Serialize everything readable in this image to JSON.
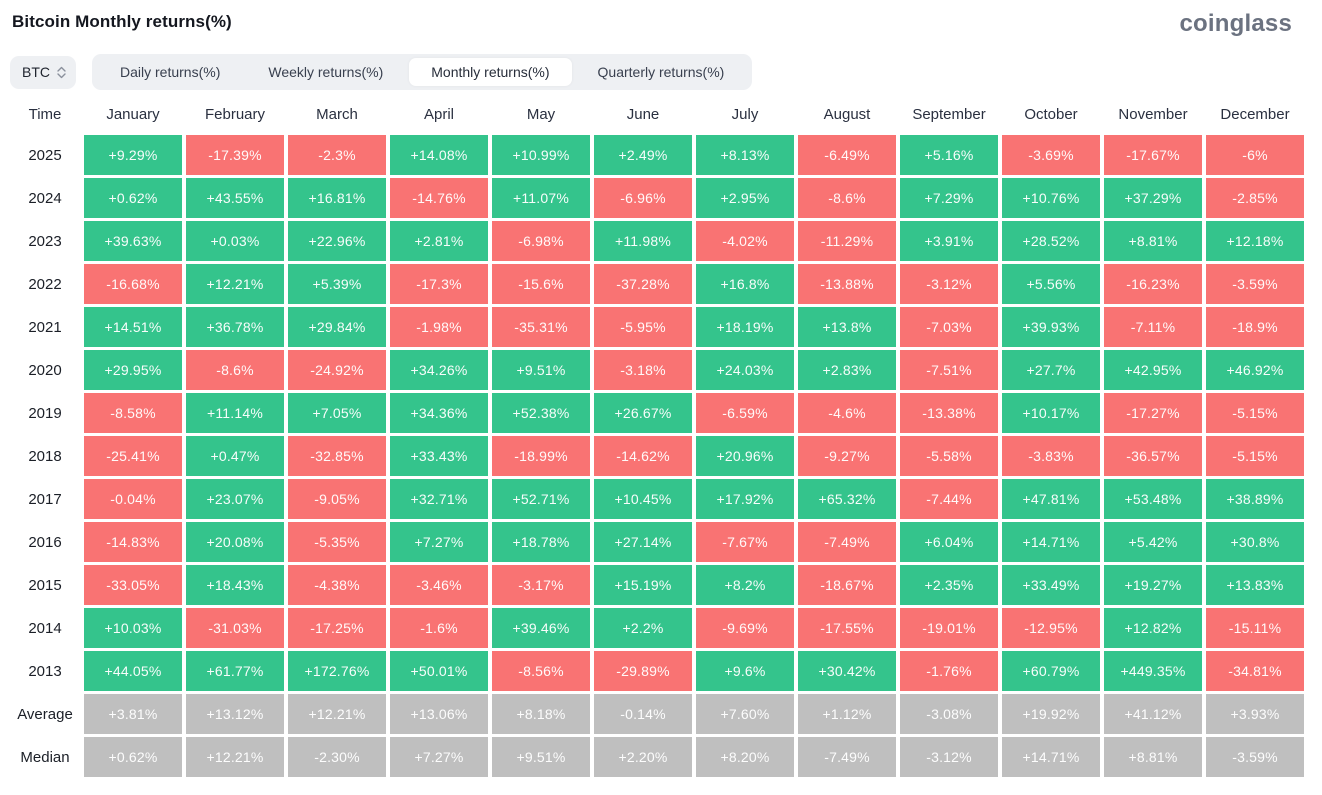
{
  "page": {
    "title": "Bitcoin Monthly returns(%)",
    "logo": "coinglass"
  },
  "controls": {
    "symbol": {
      "value": "BTC",
      "icon": "updown-chevron-icon"
    },
    "tabs": [
      {
        "label": "Daily returns(%)",
        "active": false
      },
      {
        "label": "Weekly returns(%)",
        "active": false
      },
      {
        "label": "Monthly returns(%)",
        "active": true
      },
      {
        "label": "Quarterly returns(%)",
        "active": false
      }
    ]
  },
  "colors": {
    "positive": "#34c48c",
    "negative": "#f97373",
    "summary": "#bfbfbf",
    "cell_text": "#ffffff"
  },
  "chart_data": {
    "type": "heatmap",
    "title": "Bitcoin Monthly returns(%)",
    "legend_note": "green = positive monthly return, red = negative monthly return, gray = summary rows",
    "columns": [
      "Time",
      "January",
      "February",
      "March",
      "April",
      "May",
      "June",
      "July",
      "August",
      "September",
      "October",
      "November",
      "December"
    ],
    "rows": [
      {
        "label": "2025",
        "type": "year",
        "values": [
          "+9.29%",
          "-17.39%",
          "-2.3%",
          "+14.08%",
          "+10.99%",
          "+2.49%",
          "+8.13%",
          "-6.49%",
          "+5.16%",
          "-3.69%",
          "-17.67%",
          "-6%"
        ]
      },
      {
        "label": "2024",
        "type": "year",
        "values": [
          "+0.62%",
          "+43.55%",
          "+16.81%",
          "-14.76%",
          "+11.07%",
          "-6.96%",
          "+2.95%",
          "-8.6%",
          "+7.29%",
          "+10.76%",
          "+37.29%",
          "-2.85%"
        ]
      },
      {
        "label": "2023",
        "type": "year",
        "values": [
          "+39.63%",
          "+0.03%",
          "+22.96%",
          "+2.81%",
          "-6.98%",
          "+11.98%",
          "-4.02%",
          "-11.29%",
          "+3.91%",
          "+28.52%",
          "+8.81%",
          "+12.18%"
        ]
      },
      {
        "label": "2022",
        "type": "year",
        "values": [
          "-16.68%",
          "+12.21%",
          "+5.39%",
          "-17.3%",
          "-15.6%",
          "-37.28%",
          "+16.8%",
          "-13.88%",
          "-3.12%",
          "+5.56%",
          "-16.23%",
          "-3.59%"
        ]
      },
      {
        "label": "2021",
        "type": "year",
        "values": [
          "+14.51%",
          "+36.78%",
          "+29.84%",
          "-1.98%",
          "-35.31%",
          "-5.95%",
          "+18.19%",
          "+13.8%",
          "-7.03%",
          "+39.93%",
          "-7.11%",
          "-18.9%"
        ]
      },
      {
        "label": "2020",
        "type": "year",
        "values": [
          "+29.95%",
          "-8.6%",
          "-24.92%",
          "+34.26%",
          "+9.51%",
          "-3.18%",
          "+24.03%",
          "+2.83%",
          "-7.51%",
          "+27.7%",
          "+42.95%",
          "+46.92%"
        ]
      },
      {
        "label": "2019",
        "type": "year",
        "values": [
          "-8.58%",
          "+11.14%",
          "+7.05%",
          "+34.36%",
          "+52.38%",
          "+26.67%",
          "-6.59%",
          "-4.6%",
          "-13.38%",
          "+10.17%",
          "-17.27%",
          "-5.15%"
        ]
      },
      {
        "label": "2018",
        "type": "year",
        "values": [
          "-25.41%",
          "+0.47%",
          "-32.85%",
          "+33.43%",
          "-18.99%",
          "-14.62%",
          "+20.96%",
          "-9.27%",
          "-5.58%",
          "-3.83%",
          "-36.57%",
          "-5.15%"
        ]
      },
      {
        "label": "2017",
        "type": "year",
        "values": [
          "-0.04%",
          "+23.07%",
          "-9.05%",
          "+32.71%",
          "+52.71%",
          "+10.45%",
          "+17.92%",
          "+65.32%",
          "-7.44%",
          "+47.81%",
          "+53.48%",
          "+38.89%"
        ]
      },
      {
        "label": "2016",
        "type": "year",
        "values": [
          "-14.83%",
          "+20.08%",
          "-5.35%",
          "+7.27%",
          "+18.78%",
          "+27.14%",
          "-7.67%",
          "-7.49%",
          "+6.04%",
          "+14.71%",
          "+5.42%",
          "+30.8%"
        ]
      },
      {
        "label": "2015",
        "type": "year",
        "values": [
          "-33.05%",
          "+18.43%",
          "-4.38%",
          "-3.46%",
          "-3.17%",
          "+15.19%",
          "+8.2%",
          "-18.67%",
          "+2.35%",
          "+33.49%",
          "+19.27%",
          "+13.83%"
        ]
      },
      {
        "label": "2014",
        "type": "year",
        "values": [
          "+10.03%",
          "-31.03%",
          "-17.25%",
          "-1.6%",
          "+39.46%",
          "+2.2%",
          "-9.69%",
          "-17.55%",
          "-19.01%",
          "-12.95%",
          "+12.82%",
          "-15.11%"
        ]
      },
      {
        "label": "2013",
        "type": "year",
        "values": [
          "+44.05%",
          "+61.77%",
          "+172.76%",
          "+50.01%",
          "-8.56%",
          "-29.89%",
          "+9.6%",
          "+30.42%",
          "-1.76%",
          "+60.79%",
          "+449.35%",
          "-34.81%"
        ]
      },
      {
        "label": "Average",
        "type": "summary",
        "values": [
          "+3.81%",
          "+13.12%",
          "+12.21%",
          "+13.06%",
          "+8.18%",
          "-0.14%",
          "+7.60%",
          "+1.12%",
          "-3.08%",
          "+19.92%",
          "+41.12%",
          "+3.93%"
        ]
      },
      {
        "label": "Median",
        "type": "summary",
        "values": [
          "+0.62%",
          "+12.21%",
          "-2.30%",
          "+7.27%",
          "+9.51%",
          "+2.20%",
          "+8.20%",
          "-7.49%",
          "-3.12%",
          "+14.71%",
          "+8.81%",
          "-3.59%"
        ]
      }
    ]
  }
}
